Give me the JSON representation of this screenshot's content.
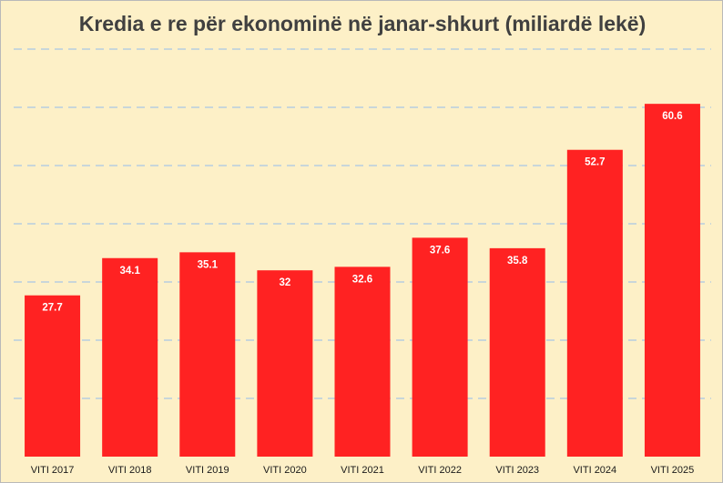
{
  "chart_data": {
    "type": "bar",
    "title": "Kredia e re për ekonominë në janar-shkurt (miliardë lekë)",
    "xlabel": "",
    "ylabel": "",
    "categories": [
      "VITI 2017",
      "VITI 2018",
      "VITI 2019",
      "VITI 2020",
      "VITI 2021",
      "VITI 2022",
      "VITI 2023",
      "VITI 2024",
      "VITI 2025"
    ],
    "values": [
      27.7,
      34.1,
      35.1,
      32,
      32.6,
      37.6,
      35.8,
      52.7,
      60.6
    ],
    "data_labels": [
      "27.7",
      "34.1",
      "35.1",
      "32",
      "32.6",
      "37.6",
      "35.8",
      "52.7",
      "60.6"
    ],
    "ylim": [
      0,
      70
    ],
    "gridlines": [
      10,
      20,
      30,
      40,
      50,
      60,
      70
    ],
    "grid": true,
    "legend": "none",
    "colors": {
      "bar": "#ff2222",
      "background": "#fdf0c7",
      "gridline": "#a9c6e6",
      "label": "#ffffff",
      "title": "#404040",
      "tick": "#1a1a1a"
    }
  }
}
